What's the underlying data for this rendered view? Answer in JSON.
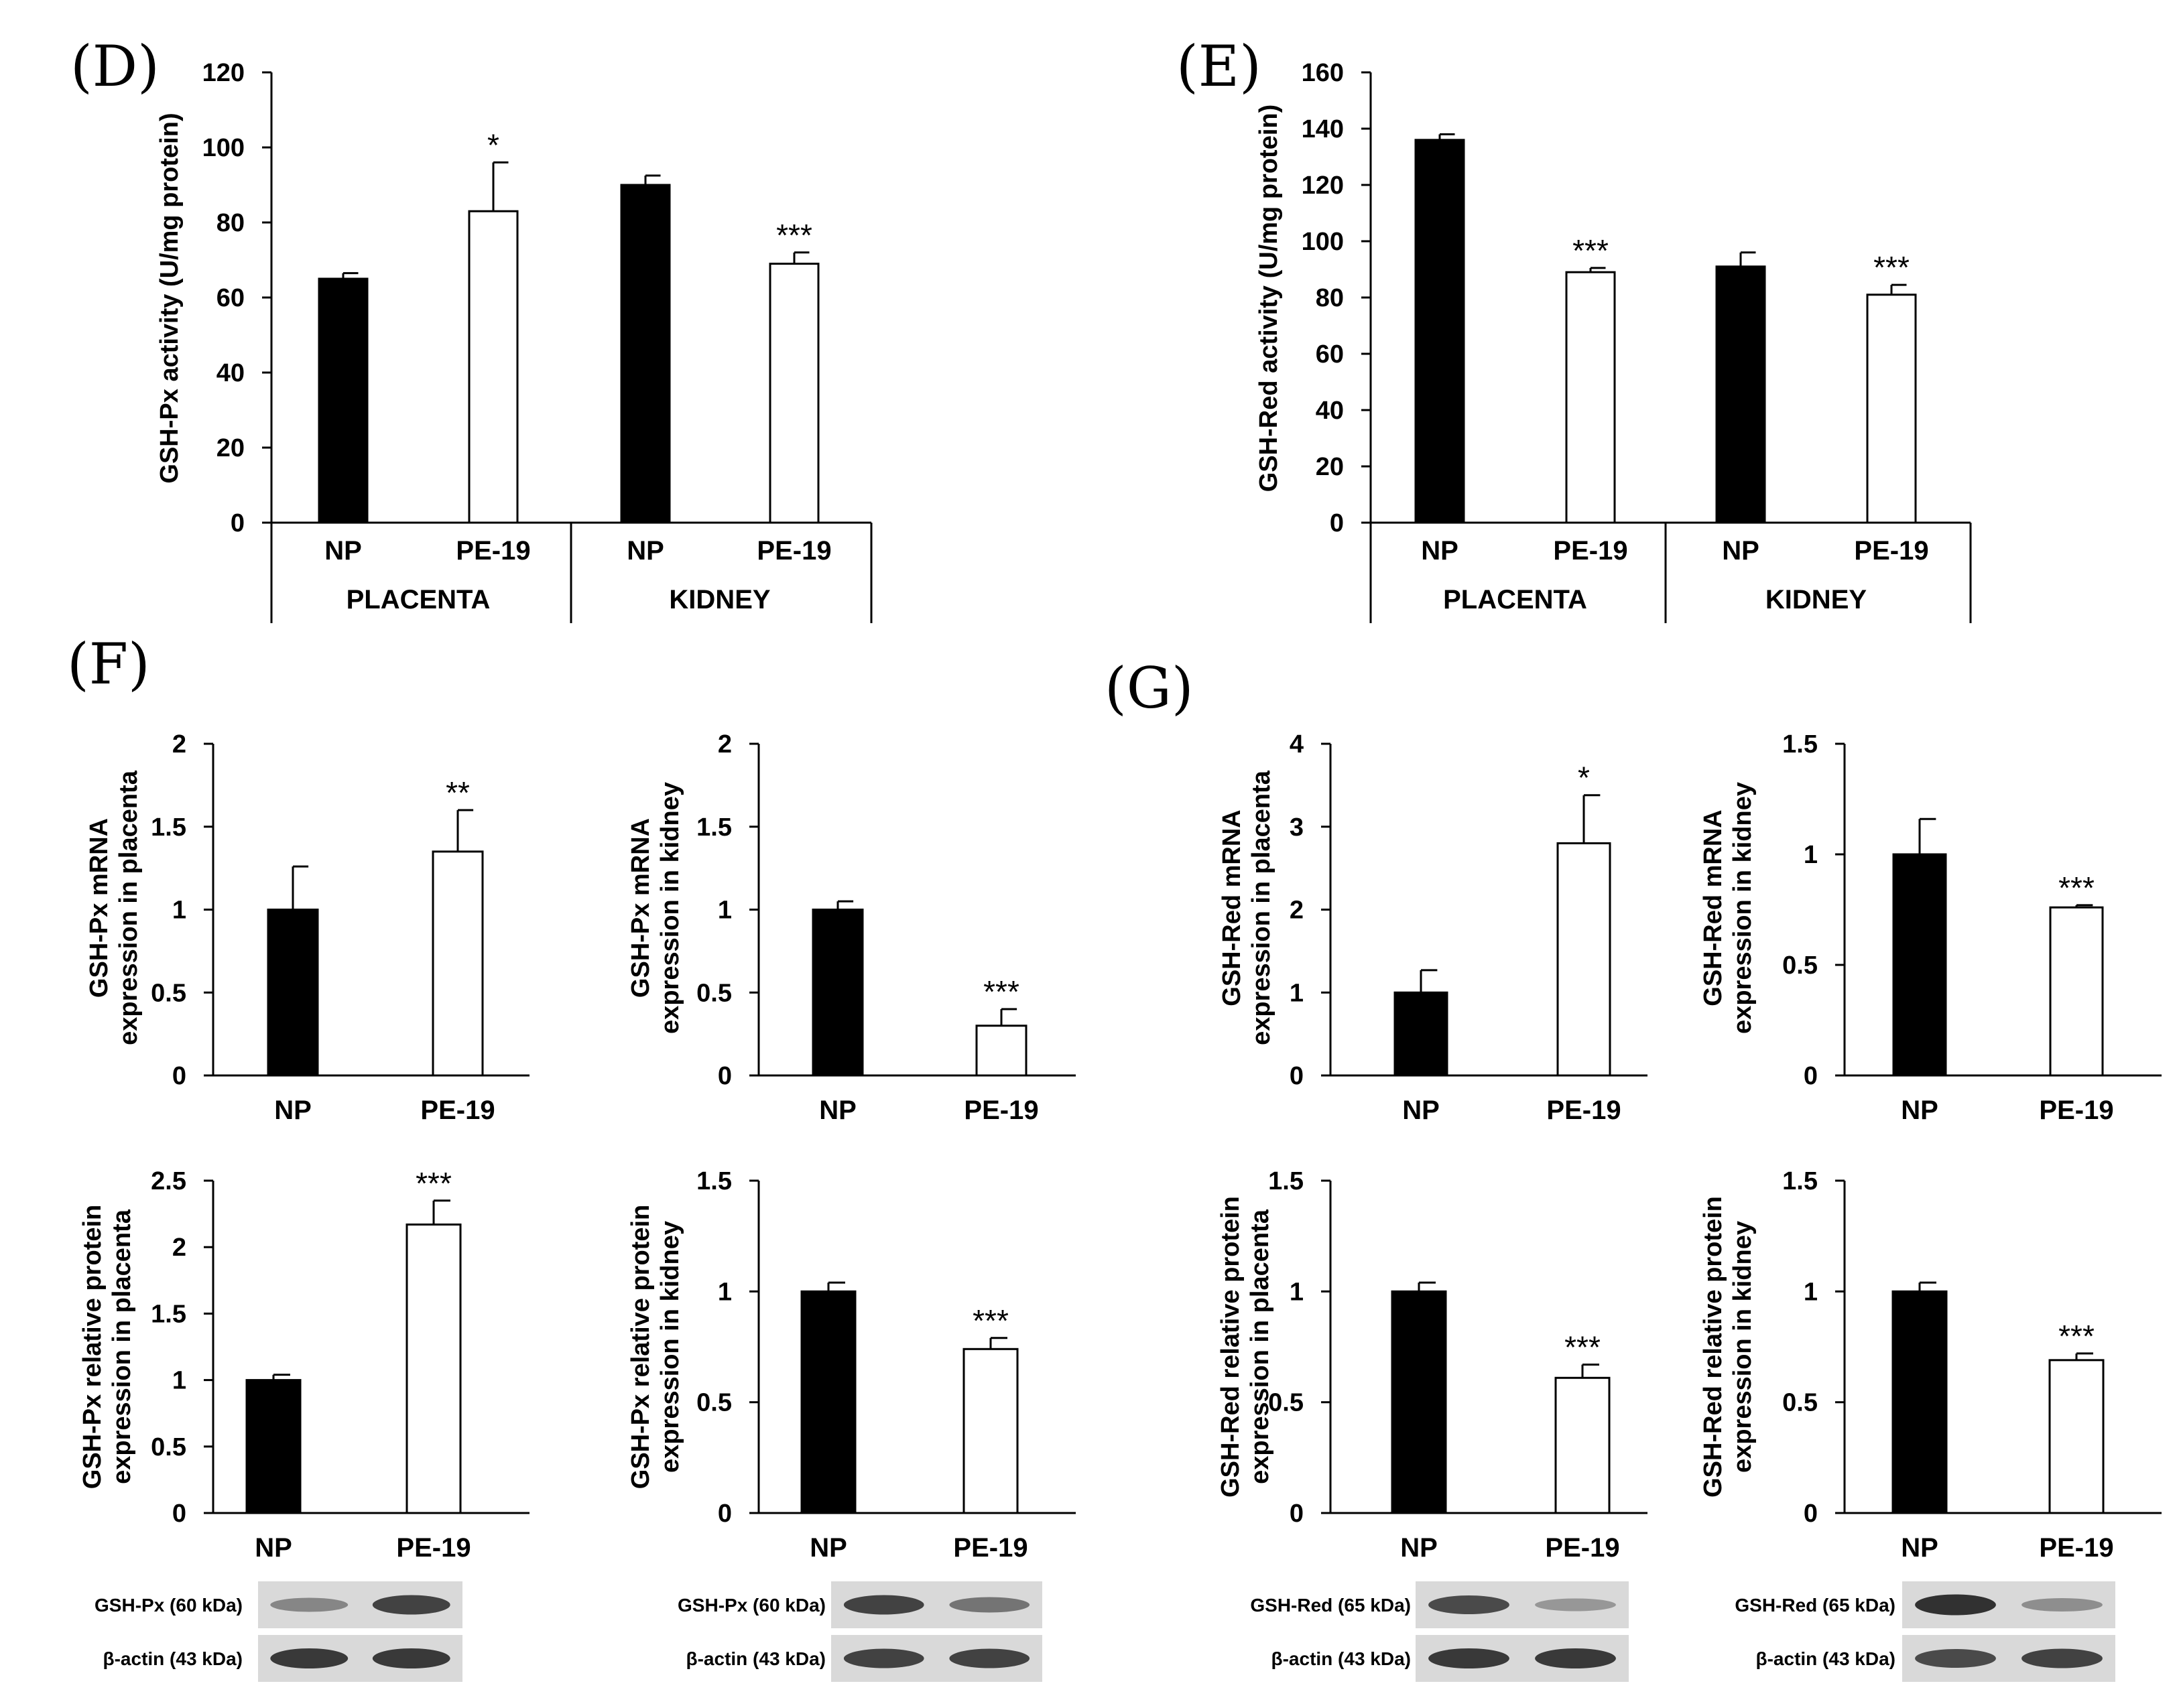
{
  "chart_data": [
    {
      "id": "D",
      "type": "bar",
      "panel_label": "(D)",
      "ylabel": "GSH-Px activity (U/mg protein)",
      "ylim": [
        0,
        120
      ],
      "yticks": [
        "0",
        "20",
        "40",
        "60",
        "80",
        "100",
        "120"
      ],
      "categories": [
        "NP",
        "PE-19",
        "NP",
        "PE-19"
      ],
      "groups": [
        "PLACENTA",
        "KIDNEY"
      ],
      "values": [
        65,
        83,
        90,
        69
      ],
      "errors": [
        1.5,
        13,
        2.5,
        3
      ],
      "fills": [
        "#000000",
        "#ffffff",
        "#000000",
        "#ffffff"
      ],
      "significance": [
        "",
        "*",
        "",
        "***"
      ]
    },
    {
      "id": "E",
      "type": "bar",
      "panel_label": "(E)",
      "ylabel": "GSH-Red activity (U/mg protein)",
      "ylim": [
        0,
        160
      ],
      "yticks": [
        "0",
        "20",
        "40",
        "60",
        "80",
        "100",
        "120",
        "140",
        "160"
      ],
      "categories": [
        "NP",
        "PE-19",
        "NP",
        "PE-19"
      ],
      "groups": [
        "PLACENTA",
        "KIDNEY"
      ],
      "values": [
        136,
        89,
        91,
        81
      ],
      "errors": [
        2,
        1.5,
        5,
        3.5
      ],
      "fills": [
        "#000000",
        "#ffffff",
        "#000000",
        "#ffffff"
      ],
      "significance": [
        "",
        "***",
        "",
        "***"
      ]
    },
    {
      "id": "F1",
      "type": "bar",
      "panel_label": "(F)",
      "ylabel": [
        "GSH-Px  mRNA",
        "expression in placenta"
      ],
      "ylim": [
        0,
        2
      ],
      "yticks": [
        "0",
        "0.5",
        "1",
        "1.5",
        "2"
      ],
      "categories": [
        "NP",
        "PE-19"
      ],
      "values": [
        1.0,
        1.35
      ],
      "errors": [
        0.26,
        0.25
      ],
      "fills": [
        "#000000",
        "#ffffff"
      ],
      "significance": [
        "",
        "**"
      ]
    },
    {
      "id": "F2",
      "type": "bar",
      "ylabel": [
        "GSH-Px mRNA",
        "expression in kidney"
      ],
      "ylim": [
        0,
        2
      ],
      "yticks": [
        "0",
        "0.5",
        "1",
        "1.5",
        "2"
      ],
      "categories": [
        "NP",
        "PE-19"
      ],
      "values": [
        1.0,
        0.3
      ],
      "errors": [
        0.05,
        0.1
      ],
      "fills": [
        "#000000",
        "#ffffff"
      ],
      "significance": [
        "",
        "***"
      ]
    },
    {
      "id": "G1",
      "type": "bar",
      "panel_label": "(G)",
      "ylabel": [
        "GSH-Red  mRNA",
        "expression in placenta"
      ],
      "ylim": [
        0,
        4
      ],
      "yticks": [
        "0",
        "1",
        "2",
        "3",
        "4"
      ],
      "categories": [
        "NP",
        "PE-19"
      ],
      "values": [
        1.0,
        2.8
      ],
      "errors": [
        0.27,
        0.58
      ],
      "fills": [
        "#000000",
        "#ffffff"
      ],
      "significance": [
        "",
        "*"
      ]
    },
    {
      "id": "G2",
      "type": "bar",
      "ylabel": [
        "GSH-Red mRNA",
        "expression in kidney"
      ],
      "ylim": [
        0,
        1.5
      ],
      "yticks": [
        "0",
        "0.5",
        "1",
        "1.5"
      ],
      "categories": [
        "NP",
        "PE-19"
      ],
      "values": [
        1.0,
        0.76
      ],
      "errors": [
        0.16,
        0.01
      ],
      "fills": [
        "#000000",
        "#ffffff"
      ],
      "significance": [
        "",
        "***"
      ]
    },
    {
      "id": "F3",
      "type": "bar",
      "ylabel": [
        "GSH-Px relative protein",
        "expression in placenta"
      ],
      "ylim": [
        0,
        2.5
      ],
      "yticks": [
        "0",
        "0.5",
        "1",
        "1.5",
        "2",
        "2.5"
      ],
      "categories": [
        "NP",
        "PE-19"
      ],
      "values": [
        1.0,
        2.17
      ],
      "errors": [
        0.04,
        0.18
      ],
      "fills": [
        "#000000",
        "#ffffff"
      ],
      "significance": [
        "",
        "***"
      ],
      "blot": [
        {
          "label": "GSH-Px (60 kDa)",
          "intensity": [
            0.45,
            0.85
          ]
        },
        {
          "label": "β-actin (43 kDa)",
          "intensity": [
            0.9,
            0.9
          ]
        }
      ]
    },
    {
      "id": "F4",
      "type": "bar",
      "ylabel": [
        "GSH-Px relative protein",
        "expression in kidney"
      ],
      "ylim": [
        0,
        1.5
      ],
      "yticks": [
        "0",
        "0.5",
        "1",
        "1.5"
      ],
      "categories": [
        "NP",
        "PE-19"
      ],
      "values": [
        1.0,
        0.74
      ],
      "errors": [
        0.04,
        0.05
      ],
      "fills": [
        "#000000",
        "#ffffff"
      ],
      "significance": [
        "",
        "***"
      ],
      "blot": [
        {
          "label": "GSH-Px (60 kDa)",
          "intensity": [
            0.85,
            0.55
          ]
        },
        {
          "label": "β-actin (43 kDa)",
          "intensity": [
            0.85,
            0.85
          ]
        }
      ]
    },
    {
      "id": "G3",
      "type": "bar",
      "ylabel": [
        "GSH-Red relative protein",
        "expression in placenta"
      ],
      "ylim": [
        0,
        1.5
      ],
      "yticks": [
        "0",
        "0.5",
        "1",
        "1.5"
      ],
      "categories": [
        "NP",
        "PE-19"
      ],
      "values": [
        1.0,
        0.61
      ],
      "errors": [
        0.04,
        0.06
      ],
      "fills": [
        "#000000",
        "#ffffff"
      ],
      "significance": [
        "",
        "***"
      ],
      "blot": [
        {
          "label": "GSH-Red (65 kDa)",
          "intensity": [
            0.8,
            0.35
          ]
        },
        {
          "label": "β-actin (43 kDa)",
          "intensity": [
            0.9,
            0.9
          ]
        }
      ]
    },
    {
      "id": "G4",
      "type": "bar",
      "ylabel": [
        "GSH-Red relative protein",
        "expression in kidney"
      ],
      "ylim": [
        0,
        1.5
      ],
      "yticks": [
        "0",
        "0.5",
        "1",
        "1.5"
      ],
      "categories": [
        "NP",
        "PE-19"
      ],
      "values": [
        1.0,
        0.69
      ],
      "errors": [
        0.04,
        0.03
      ],
      "fills": [
        "#000000",
        "#ffffff"
      ],
      "significance": [
        "",
        "***"
      ],
      "blot": [
        {
          "label": "GSH-Red (65 kDa)",
          "intensity": [
            0.95,
            0.4
          ]
        },
        {
          "label": "β-actin (43 kDa)",
          "intensity": [
            0.8,
            0.85
          ]
        }
      ]
    }
  ]
}
